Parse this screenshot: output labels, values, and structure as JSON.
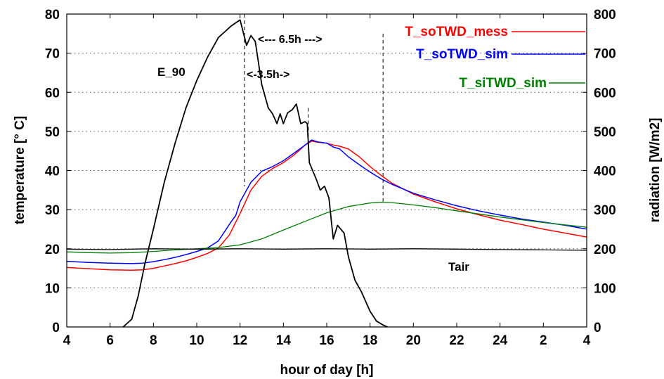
{
  "chart_data": {
    "type": "line",
    "xlabel": "hour of day [h]",
    "ylabel": "temperature [° C]",
    "y2label": "radiation [W/m2]",
    "x_ticks": [
      "4",
      "6",
      "8",
      "10",
      "12",
      "14",
      "16",
      "18",
      "20",
      "22",
      "24",
      "2",
      "4"
    ],
    "xlim": [
      4,
      28
    ],
    "ylim": [
      0,
      80
    ],
    "y_ticks": [
      0,
      10,
      20,
      30,
      40,
      50,
      60,
      70,
      80
    ],
    "y2lim": [
      0,
      800
    ],
    "y2_ticks": [
      0,
      100,
      200,
      300,
      400,
      500,
      600,
      700,
      800
    ],
    "grid": true,
    "legend_position": "top-right",
    "series": [
      {
        "name": "T_soTWD_mess",
        "color": "#ff0000",
        "axis": "left",
        "x": [
          4,
          5,
          6,
          7,
          7.5,
          8,
          8.5,
          9,
          9.5,
          10,
          10.5,
          11,
          11.5,
          12,
          12.5,
          13,
          13.5,
          14,
          14.5,
          15,
          15.3,
          15.6,
          16,
          16.3,
          16.6,
          17,
          17.5,
          18,
          18.5,
          19,
          20,
          21,
          22,
          23,
          24,
          25,
          26,
          27,
          28
        ],
        "y": [
          15.2,
          14.9,
          14.6,
          14.5,
          14.6,
          15.0,
          15.6,
          16.2,
          16.9,
          17.8,
          18.8,
          20.2,
          23.5,
          29.0,
          35.0,
          38.5,
          40.5,
          42.0,
          44.0,
          46.5,
          47.5,
          47.2,
          47.0,
          46.5,
          46.2,
          45.5,
          43.5,
          41.0,
          38.8,
          36.8,
          34.0,
          32.0,
          30.2,
          28.7,
          27.3,
          26.2,
          25.0,
          24.0,
          23.0
        ]
      },
      {
        "name": "T_soTWD_sim",
        "color": "#0000ff",
        "axis": "left",
        "x": [
          4,
          5,
          6,
          7,
          7.5,
          8,
          8.5,
          9,
          9.5,
          10,
          10.5,
          11,
          11.3,
          11.6,
          11.8,
          12,
          12.5,
          13,
          13.5,
          14,
          14.5,
          15,
          15.3,
          15.6,
          16,
          16.3,
          16.6,
          17,
          17.5,
          18,
          18.5,
          19,
          20,
          21,
          22,
          23,
          24,
          25,
          26,
          27,
          28
        ],
        "y": [
          16.8,
          16.5,
          16.3,
          16.2,
          16.3,
          16.7,
          17.2,
          17.8,
          18.5,
          19.3,
          20.2,
          22.0,
          24.5,
          27.0,
          28.5,
          32.0,
          37.0,
          39.8,
          41.0,
          42.5,
          44.5,
          46.5,
          47.8,
          47.3,
          47.0,
          46.0,
          45.5,
          43.5,
          41.5,
          39.6,
          37.9,
          36.5,
          34.2,
          32.5,
          31.0,
          29.7,
          28.6,
          27.6,
          26.8,
          26.0,
          25.0
        ]
      },
      {
        "name": "T_siTWD_sim",
        "color": "#008000",
        "axis": "left",
        "x": [
          4,
          5,
          6,
          7,
          8,
          9,
          10,
          11,
          12,
          13,
          14,
          15,
          16,
          17,
          18,
          18.5,
          19,
          20,
          21,
          22,
          23,
          24,
          25,
          26,
          27,
          28
        ],
        "y": [
          19.2,
          19.0,
          18.9,
          19.0,
          19.3,
          19.7,
          20.0,
          20.3,
          21.0,
          22.5,
          24.8,
          27.0,
          29.2,
          30.8,
          31.7,
          31.9,
          31.8,
          31.2,
          30.5,
          29.7,
          28.9,
          28.1,
          27.4,
          26.7,
          26.1,
          25.5
        ]
      },
      {
        "name": "Tair",
        "color": "#000000",
        "axis": "left",
        "x": [
          4,
          6,
          8,
          10,
          12,
          14,
          16,
          18,
          20,
          22,
          24,
          26,
          28
        ],
        "y": [
          19.9,
          19.8,
          20.0,
          19.9,
          20.0,
          19.9,
          20.0,
          19.9,
          20.0,
          19.9,
          19.8,
          19.7,
          19.6
        ]
      },
      {
        "name": "E_90",
        "color": "#000000",
        "axis": "right",
        "x": [
          6.6,
          7.0,
          7.3,
          7.6,
          8.0,
          8.5,
          9.0,
          9.5,
          10.0,
          10.5,
          11.0,
          11.3,
          11.6,
          12.0,
          12.3,
          12.5,
          12.7,
          13.0,
          13.3,
          13.5,
          13.7,
          13.85,
          14.0,
          14.2,
          14.4,
          14.6,
          14.8,
          15.0,
          15.1,
          15.2,
          15.5,
          15.7,
          15.9,
          16.1,
          16.3,
          16.5,
          16.8,
          17.0,
          17.3,
          17.6,
          18.0,
          18.3,
          18.6,
          18.8
        ],
        "y": [
          0,
          20,
          80,
          160,
          250,
          370,
          470,
          560,
          630,
          690,
          740,
          755,
          770,
          785,
          720,
          745,
          730,
          620,
          560,
          545,
          520,
          545,
          520,
          548,
          555,
          570,
          520,
          525,
          520,
          420,
          380,
          350,
          360,
          330,
          225,
          260,
          240,
          180,
          120,
          90,
          40,
          15,
          5,
          0
        ]
      }
    ],
    "annotations": {
      "e90_label": "E_90",
      "tair_label": "Tair",
      "delay_long": "<--- 6.5h --->",
      "delay_short": "<-3.5h->"
    }
  }
}
